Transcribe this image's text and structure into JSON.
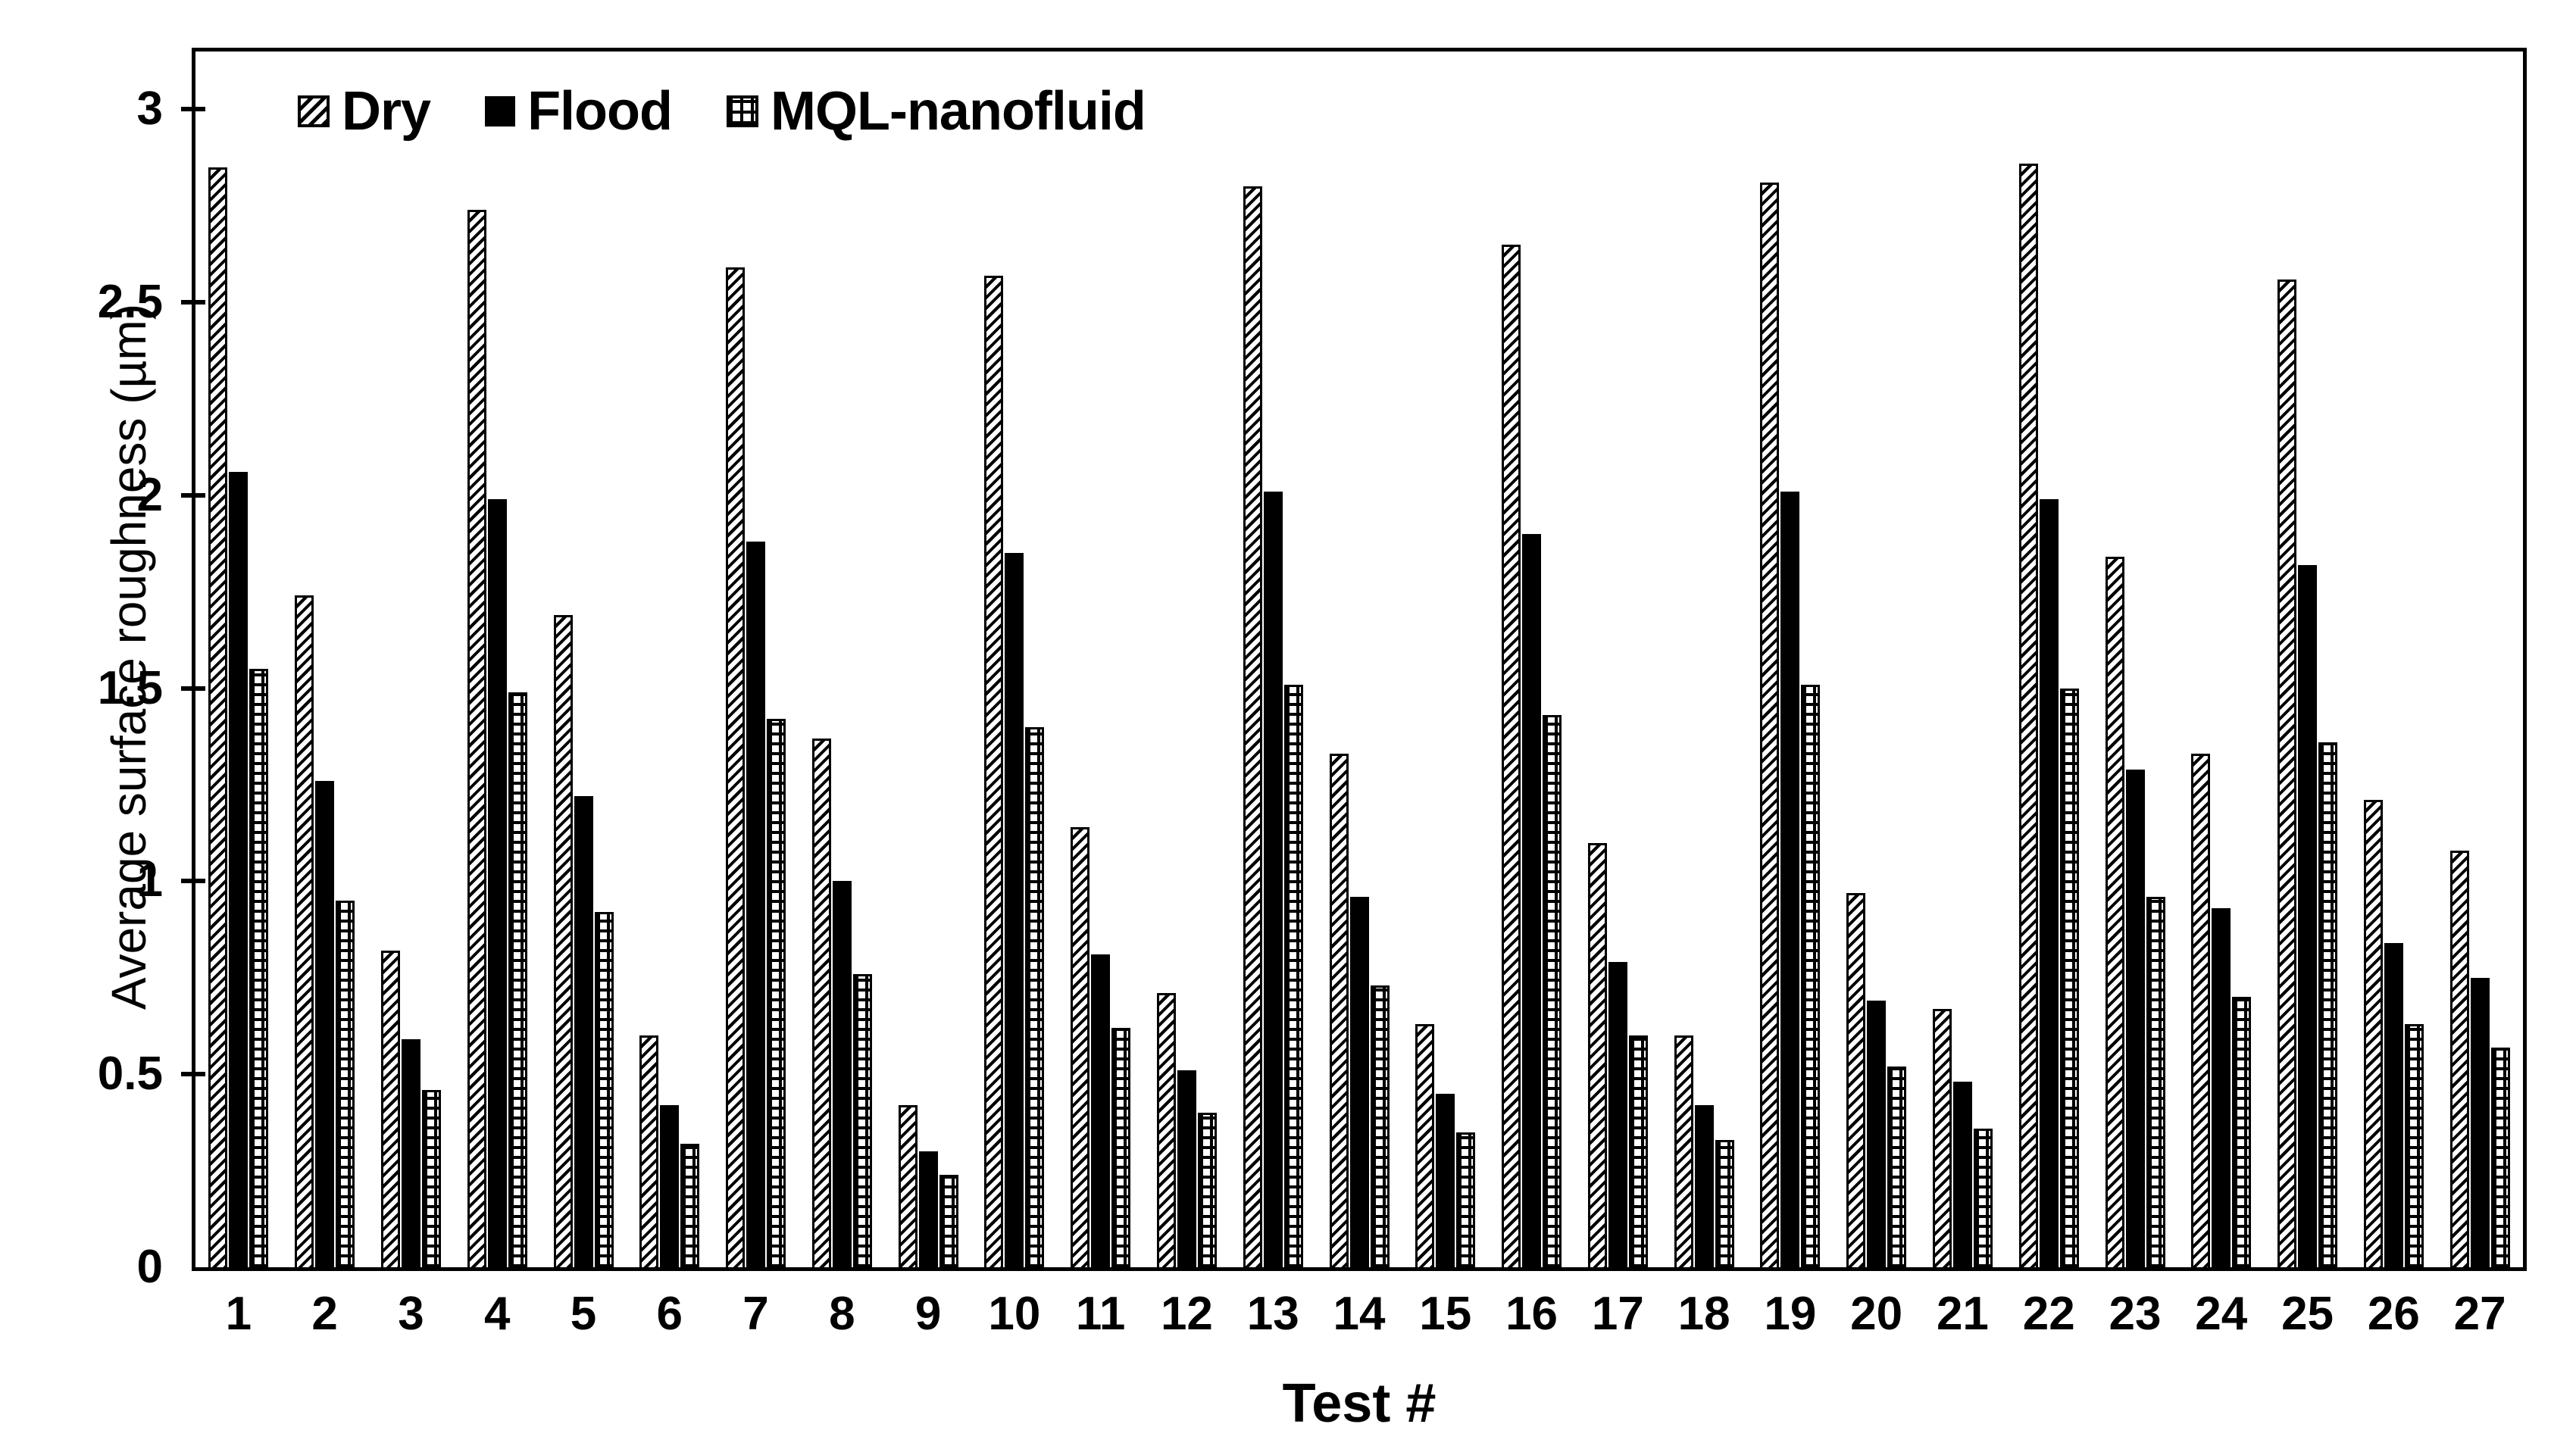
{
  "figure": {
    "background": "#ffffff",
    "ink": "#000000",
    "plot_border": "#000000"
  },
  "legend": {
    "items": [
      {
        "label": "Dry",
        "pattern": "diagonal-hatch"
      },
      {
        "label": "Flood",
        "pattern": "solid"
      },
      {
        "label": "MQL-nanofluid",
        "pattern": "grid"
      }
    ]
  },
  "chart_data": {
    "type": "bar",
    "title": "",
    "xlabel": "Test #",
    "ylabel": "Average surface roughness (µm)",
    "categories": [
      1,
      2,
      3,
      4,
      5,
      6,
      7,
      8,
      9,
      10,
      11,
      12,
      13,
      14,
      15,
      16,
      17,
      18,
      19,
      20,
      21,
      22,
      23,
      24,
      25,
      26,
      27
    ],
    "series": [
      {
        "name": "Dry",
        "pattern": "diagonal-hatch",
        "values": [
          2.85,
          1.74,
          0.82,
          2.74,
          1.69,
          0.6,
          2.59,
          1.37,
          0.42,
          2.57,
          1.14,
          0.71,
          2.8,
          1.33,
          0.63,
          2.65,
          1.1,
          0.6,
          2.81,
          0.97,
          0.67,
          2.86,
          1.84,
          1.33,
          2.56,
          1.21,
          1.08
        ]
      },
      {
        "name": "Flood",
        "pattern": "solid",
        "values": [
          2.06,
          1.26,
          0.59,
          1.99,
          1.22,
          0.42,
          1.88,
          1.0,
          0.3,
          1.85,
          0.81,
          0.51,
          2.01,
          0.96,
          0.45,
          1.9,
          0.79,
          0.42,
          2.01,
          0.69,
          0.48,
          1.99,
          1.29,
          0.93,
          1.82,
          0.84,
          0.75
        ]
      },
      {
        "name": "MQL-nanofluid",
        "pattern": "grid",
        "values": [
          1.55,
          0.95,
          0.46,
          1.49,
          0.92,
          0.32,
          1.42,
          0.76,
          0.24,
          1.4,
          0.62,
          0.4,
          1.51,
          0.73,
          0.35,
          1.43,
          0.6,
          0.33,
          1.51,
          0.52,
          0.36,
          1.5,
          0.96,
          0.7,
          1.36,
          0.63,
          0.57
        ]
      }
    ],
    "ylim": [
      0,
      3.15
    ],
    "yticks": [
      0,
      0.5,
      1,
      1.5,
      2,
      2.5,
      3
    ],
    "grid": false,
    "legend_position": "top-inside"
  }
}
